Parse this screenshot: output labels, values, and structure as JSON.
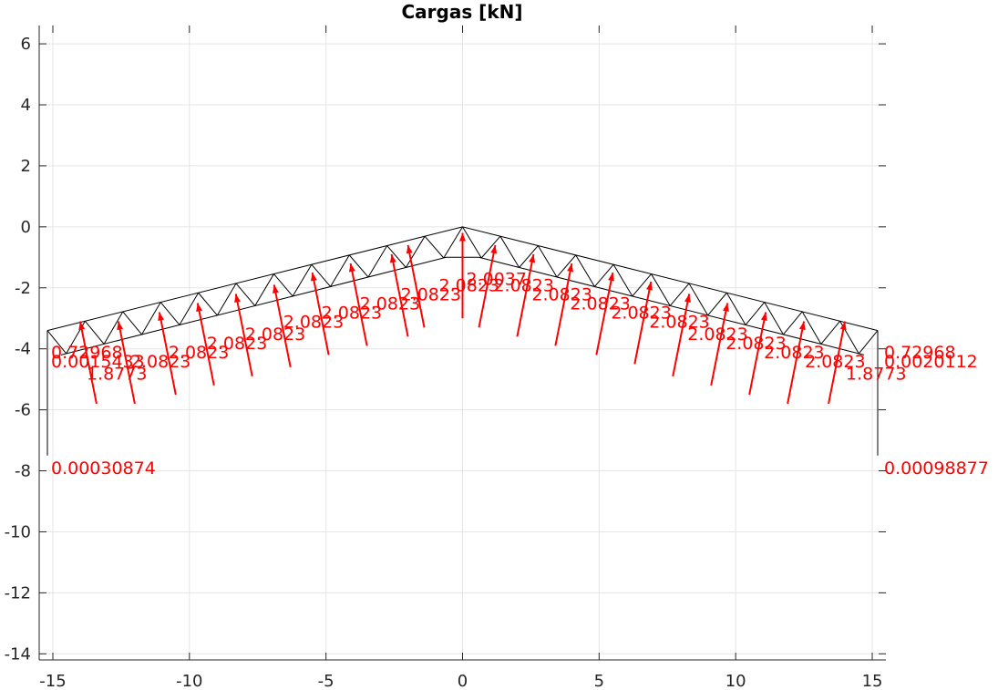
{
  "chart_data": {
    "type": "diagram",
    "title": "Cargas [kN]",
    "xlim": [
      -15.5,
      15.5
    ],
    "ylim": [
      -14.2,
      6.6
    ],
    "xticks": [
      -15,
      -10,
      -5,
      0,
      5,
      10,
      15
    ],
    "yticks": [
      -14,
      -12,
      -10,
      -8,
      -6,
      -4,
      -2,
      0,
      2,
      4,
      6
    ],
    "grid": true,
    "colors": {
      "truss": "#000000",
      "loads": "#ff0000",
      "grid": "#e5e5e5",
      "axis": "#262626"
    },
    "truss": {
      "top_chord": [
        [
          -15.2,
          -3.4
        ],
        [
          0,
          0
        ],
        [
          15.2,
          -3.4
        ]
      ],
      "bottom_chord": [
        [
          -14.7,
          -4.2
        ],
        [
          -0.6,
          -1.0
        ],
        [
          0.6,
          -1.0
        ],
        [
          14.7,
          -4.2
        ]
      ],
      "columns": [
        {
          "x": -15.2,
          "y_top": -3.4,
          "y_bottom": -7.5
        },
        {
          "x": 15.2,
          "y_top": -3.4,
          "y_bottom": -7.5
        }
      ]
    },
    "loads": [
      {
        "x": 0.0,
        "y": -3.0,
        "dx": 0.0,
        "dy": 2.8
      },
      {
        "x": -1.4,
        "y": -3.3,
        "dx": -0.6,
        "dy": 2.7
      },
      {
        "x": -2.0,
        "y": -3.6,
        "dx": -0.6,
        "dy": 2.7
      },
      {
        "x": -3.5,
        "y": -3.9,
        "dx": -0.6,
        "dy": 2.7
      },
      {
        "x": -4.9,
        "y": -4.2,
        "dx": -0.6,
        "dy": 2.7
      },
      {
        "x": -6.3,
        "y": -4.6,
        "dx": -0.6,
        "dy": 2.7
      },
      {
        "x": -7.7,
        "y": -4.9,
        "dx": -0.6,
        "dy": 2.7
      },
      {
        "x": -9.1,
        "y": -5.2,
        "dx": -0.6,
        "dy": 2.7
      },
      {
        "x": -10.5,
        "y": -5.5,
        "dx": -0.6,
        "dy": 2.7
      },
      {
        "x": -12.0,
        "y": -5.8,
        "dx": -0.6,
        "dy": 2.7
      },
      {
        "x": -13.4,
        "y": -5.8,
        "dx": -0.6,
        "dy": 2.7
      },
      {
        "x": 0.6,
        "y": -3.3,
        "dx": 0.6,
        "dy": 2.7
      },
      {
        "x": 2.0,
        "y": -3.6,
        "dx": 0.6,
        "dy": 2.7
      },
      {
        "x": 3.4,
        "y": -3.9,
        "dx": 0.6,
        "dy": 2.7
      },
      {
        "x": 4.9,
        "y": -4.2,
        "dx": 0.6,
        "dy": 2.7
      },
      {
        "x": 6.3,
        "y": -4.5,
        "dx": 0.6,
        "dy": 2.7
      },
      {
        "x": 7.7,
        "y": -4.9,
        "dx": 0.6,
        "dy": 2.7
      },
      {
        "x": 9.1,
        "y": -5.2,
        "dx": 0.6,
        "dy": 2.7
      },
      {
        "x": 10.5,
        "y": -5.5,
        "dx": 0.6,
        "dy": 2.7
      },
      {
        "x": 11.9,
        "y": -5.8,
        "dx": 0.6,
        "dy": 2.7
      },
      {
        "x": 13.4,
        "y": -5.8,
        "dx": 0.6,
        "dy": 2.7
      }
    ],
    "annotations": [
      {
        "x": 0.0,
        "y": -1.7,
        "text": "2.0037"
      },
      {
        "x": -1.0,
        "y": -1.9,
        "text": "2.0823"
      },
      {
        "x": -2.4,
        "y": -2.2,
        "text": "2.0823"
      },
      {
        "x": -3.9,
        "y": -2.5,
        "text": "2.0823"
      },
      {
        "x": -5.3,
        "y": -2.8,
        "text": "2.0823"
      },
      {
        "x": -6.7,
        "y": -3.1,
        "text": "2.0823"
      },
      {
        "x": -8.1,
        "y": -3.5,
        "text": "2.0823"
      },
      {
        "x": -9.5,
        "y": -3.8,
        "text": "2.0823"
      },
      {
        "x": -10.9,
        "y": -4.1,
        "text": "2.0823"
      },
      {
        "x": -12.3,
        "y": -4.4,
        "text": "2.0823"
      },
      {
        "x": 1.0,
        "y": -1.9,
        "text": "2.0823"
      },
      {
        "x": 2.4,
        "y": -2.2,
        "text": "2.0823"
      },
      {
        "x": 3.8,
        "y": -2.5,
        "text": "2.0823"
      },
      {
        "x": 5.3,
        "y": -2.8,
        "text": "2.0823"
      },
      {
        "x": 6.7,
        "y": -3.1,
        "text": "2.0823"
      },
      {
        "x": 8.1,
        "y": -3.5,
        "text": "2.0823"
      },
      {
        "x": 9.5,
        "y": -3.8,
        "text": "2.0823"
      },
      {
        "x": 10.9,
        "y": -4.1,
        "text": "2.0823"
      },
      {
        "x": 12.4,
        "y": -4.4,
        "text": "2.0823"
      },
      {
        "x": -15.2,
        "y": -4.1,
        "text": "0.72968"
      },
      {
        "x": -15.2,
        "y": -4.4,
        "text": "0.0015433"
      },
      {
        "x": -13.9,
        "y": -4.8,
        "text": "1.8773"
      },
      {
        "x": 15.3,
        "y": -4.1,
        "text": "0.72968"
      },
      {
        "x": 15.3,
        "y": -4.4,
        "text": "0.0020112"
      },
      {
        "x": 13.9,
        "y": -4.8,
        "text": "1.8773"
      },
      {
        "x": -15.2,
        "y": -7.9,
        "text": "0.00030874"
      },
      {
        "x": 15.3,
        "y": -7.9,
        "text": "0.00098877"
      }
    ]
  }
}
